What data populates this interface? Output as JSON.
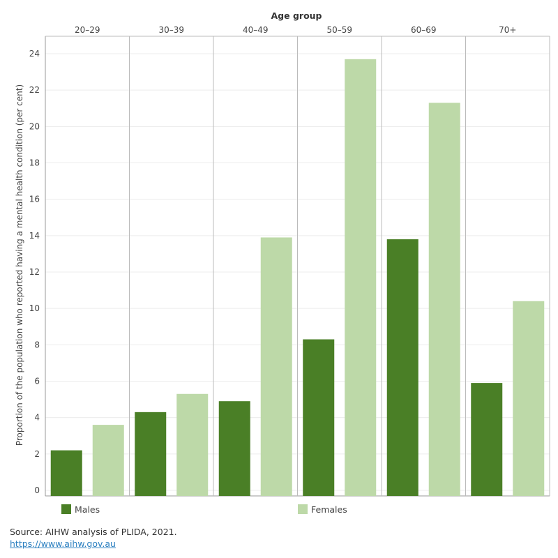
{
  "chart_data": {
    "type": "bar",
    "title": "",
    "column_header": "Age group",
    "ylabel": "Proportion of the population who reported having a mental health condition (per cent)",
    "xlabel": "",
    "ylim": [
      0,
      24
    ],
    "yticks": [
      0,
      2,
      4,
      6,
      8,
      10,
      12,
      14,
      16,
      18,
      20,
      22,
      24
    ],
    "categories": [
      "20–29",
      "30–39",
      "40–49",
      "50–59",
      "60–69",
      "70+"
    ],
    "series": [
      {
        "name": "Males",
        "color": "#4a7f26",
        "values": [
          2.2,
          4.3,
          4.9,
          8.3,
          13.8,
          5.9
        ]
      },
      {
        "name": "Females",
        "color": "#bdd9a8",
        "values": [
          3.6,
          5.3,
          13.9,
          23.7,
          21.3,
          10.4
        ]
      }
    ],
    "legend_position": "bottom"
  },
  "footer": {
    "source": "Source: AIHW analysis of PLIDA, 2021.",
    "link": "https://www.aihw.gov.au"
  }
}
